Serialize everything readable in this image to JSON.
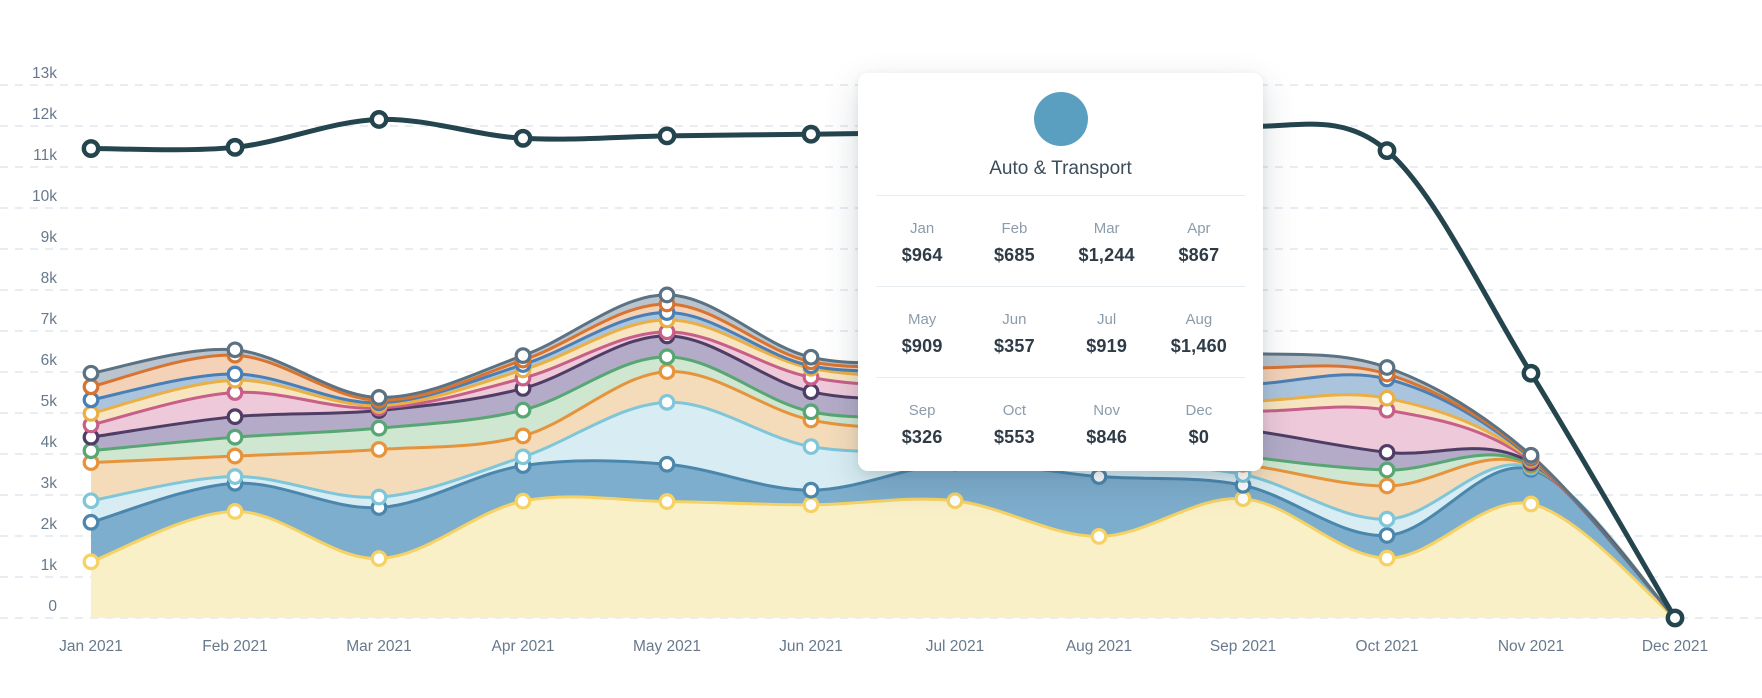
{
  "tooltip": {
    "category": "Auto & Transport",
    "icon": "car-icon",
    "icon_bg_color": "#5b9fc0",
    "entries": [
      {
        "month": "Jan",
        "value": "$964"
      },
      {
        "month": "Feb",
        "value": "$685"
      },
      {
        "month": "Mar",
        "value": "$1,244"
      },
      {
        "month": "Apr",
        "value": "$867"
      },
      {
        "month": "May",
        "value": "$909"
      },
      {
        "month": "Jun",
        "value": "$357"
      },
      {
        "month": "Jul",
        "value": "$919"
      },
      {
        "month": "Aug",
        "value": "$1,460"
      },
      {
        "month": "Sep",
        "value": "$326"
      },
      {
        "month": "Oct",
        "value": "$553"
      },
      {
        "month": "Nov",
        "value": "$846"
      },
      {
        "month": "Dec",
        "value": "$0"
      }
    ]
  },
  "chart_data": {
    "type": "area",
    "stacked": true,
    "title": "",
    "xlabel": "",
    "ylabel": "",
    "x_labels": [
      "Jan 2021",
      "Feb 2021",
      "Mar 2021",
      "Apr 2021",
      "May 2021",
      "Jun 2021",
      "Jul 2021",
      "Aug 2021",
      "Sep 2021",
      "Oct 2021",
      "Nov 2021",
      "Dec 2021"
    ],
    "y_tick_labels": [
      "0",
      "1k",
      "2k",
      "3k",
      "4k",
      "5k",
      "6k",
      "7k",
      "8k",
      "9k",
      "10k",
      "11k",
      "12k",
      "13k"
    ],
    "y_tick_values": [
      0,
      1000,
      2000,
      3000,
      4000,
      5000,
      6000,
      7000,
      8000,
      9000,
      10000,
      11000,
      12000,
      13000
    ],
    "ylim": [
      0,
      13000
    ],
    "grid": "horizontal-dashed",
    "grid_color": "#e1e6ef",
    "axis_label_color": "#68798b",
    "legend": "none",
    "series": [
      {
        "id": "yellow",
        "color": "#f5d263",
        "fill": "#faf0c8",
        "values": [
          1370,
          2600,
          1450,
          2850,
          2840,
          2760,
          2860,
          1990,
          2910,
          1460,
          2780,
          0
        ]
      },
      {
        "id": "auto-transport",
        "label": "Auto & Transport",
        "color": "#4b87ad",
        "fill": "#7eaecd",
        "values": [
          964,
          685,
          1244,
          867,
          909,
          357,
          919,
          1460,
          326,
          553,
          846,
          0
        ]
      },
      {
        "id": "light-cyan",
        "color": "#7fc6d8",
        "fill": "#d8edf3",
        "values": [
          526,
          165,
          256,
          213,
          1511,
          1063,
          271,
          350,
          264,
          397,
          54,
          0
        ]
      },
      {
        "id": "orange",
        "color": "#e6943c",
        "fill": "#f4dcba",
        "values": [
          930,
          500,
          1160,
          510,
          750,
          650,
          500,
          350,
          250,
          810,
          40,
          0
        ]
      },
      {
        "id": "green",
        "color": "#57a673",
        "fill": "#cfe6d0",
        "values": [
          290,
          460,
          520,
          630,
          360,
          200,
          350,
          300,
          200,
          390,
          30,
          0
        ]
      },
      {
        "id": "purple",
        "color": "#4f3d66",
        "fill": "#b3abc7",
        "values": [
          330,
          500,
          430,
          530,
          510,
          490,
          400,
          500,
          650,
          430,
          40,
          0
        ]
      },
      {
        "id": "pink",
        "color": "#c75f88",
        "fill": "#edc9d9",
        "values": [
          300,
          590,
          60,
          250,
          100,
          350,
          300,
          400,
          450,
          1030,
          40,
          0
        ]
      },
      {
        "id": "gold",
        "color": "#eaaf45",
        "fill": "#f7e5c1",
        "values": [
          280,
          300,
          60,
          200,
          290,
          220,
          250,
          250,
          250,
          290,
          40,
          0
        ]
      },
      {
        "id": "steel-blue",
        "color": "#4a7fb5",
        "fill": "#abc4dd",
        "values": [
          330,
          150,
          70,
          130,
          180,
          60,
          200,
          300,
          400,
          470,
          30,
          0
        ]
      },
      {
        "id": "orange-red",
        "color": "#d8742f",
        "fill": "#f3d2b8",
        "values": [
          320,
          460,
          60,
          110,
          210,
          100,
          150,
          250,
          400,
          120,
          40,
          0
        ]
      },
      {
        "id": "slate",
        "color": "#5b7282",
        "fill": "#b9c4ce",
        "values": [
          330,
          130,
          70,
          110,
          220,
          110,
          100,
          230,
          350,
          160,
          30,
          0
        ]
      }
    ],
    "total_line": {
      "id": "total",
      "color": "#24444e",
      "values": [
        11450,
        11480,
        12160,
        11700,
        11760,
        11800,
        11850,
        11900,
        12000,
        11400,
        5970,
        0
      ]
    }
  }
}
